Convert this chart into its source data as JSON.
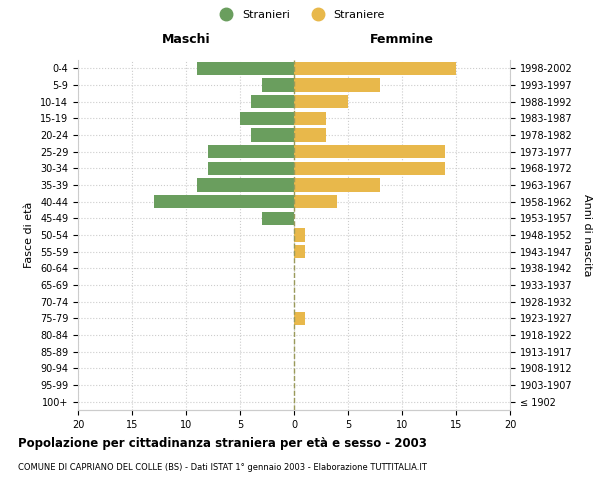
{
  "age_groups": [
    "100+",
    "95-99",
    "90-94",
    "85-89",
    "80-84",
    "75-79",
    "70-74",
    "65-69",
    "60-64",
    "55-59",
    "50-54",
    "45-49",
    "40-44",
    "35-39",
    "30-34",
    "25-29",
    "20-24",
    "15-19",
    "10-14",
    "5-9",
    "0-4"
  ],
  "birth_years": [
    "≤ 1902",
    "1903-1907",
    "1908-1912",
    "1913-1917",
    "1918-1922",
    "1923-1927",
    "1928-1932",
    "1933-1937",
    "1938-1942",
    "1943-1947",
    "1948-1952",
    "1953-1957",
    "1958-1962",
    "1963-1967",
    "1968-1972",
    "1973-1977",
    "1978-1982",
    "1983-1987",
    "1988-1992",
    "1993-1997",
    "1998-2002"
  ],
  "maschi": [
    0,
    0,
    0,
    0,
    0,
    0,
    0,
    0,
    0,
    0,
    0,
    3,
    13,
    9,
    8,
    8,
    4,
    5,
    4,
    3,
    9
  ],
  "femmine": [
    0,
    0,
    0,
    0,
    0,
    1,
    0,
    0,
    0,
    1,
    1,
    0,
    4,
    8,
    14,
    14,
    3,
    3,
    5,
    8,
    15
  ],
  "color_maschi": "#6a9e5e",
  "color_femmine": "#e8b84b",
  "color_grid": "#cccccc",
  "color_centerline": "#9a9a5a",
  "xlim": 20,
  "title": "Popolazione per cittadinanza straniera per età e sesso - 2003",
  "subtitle": "COMUNE DI CAPRIANO DEL COLLE (BS) - Dati ISTAT 1° gennaio 2003 - Elaborazione TUTTITALIA.IT",
  "ylabel_left": "Fasce di età",
  "ylabel_right": "Anni di nascita",
  "legend_maschi": "Stranieri",
  "legend_femmine": "Straniere",
  "maschi_label": "Maschi",
  "femmine_label": "Femmine",
  "bar_height": 0.8
}
